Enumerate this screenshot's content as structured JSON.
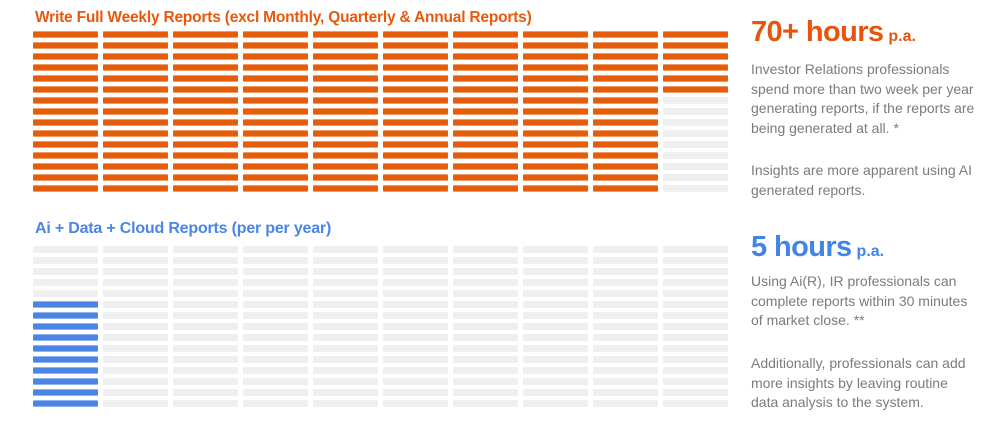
{
  "left": {
    "orange": {
      "title": "Write Full Weekly Reports (excl Monthly, Quarterly &  Annual Reports)",
      "color": "#E8590C"
    },
    "blue": {
      "title": "Ai + Data + Cloud Reports (per per year)",
      "color": "#4A85E8"
    }
  },
  "right": {
    "stat_orange": {
      "value": "70+ hours",
      "suffix": "p.a.",
      "color": "#E8540D",
      "paragraph1": "Investor Relations professionals\nspend more than two  week per year\ngenerating reports, if the reports are\nbeing generated at all. *",
      "paragraph2": "Insights are more apparent using AI\ngenerated reports."
    },
    "stat_blue": {
      "value": "5 hours",
      "suffix": "p.a.",
      "color": "#4285E8",
      "paragraph1": "Using Ai(R), IR professionals can\ncomplete reports within 30 minutes\nof market close. **",
      "paragraph2": "Additionally, professionals can add\nmore insights by leaving routine\ndata analysis to the system."
    }
  },
  "chart_data": [
    {
      "type": "waffle",
      "title": "Write Full Weekly Reports (excl Monthly, Quarterly &  Annual Reports)",
      "value_label": "70+ hours p.a.",
      "rows": 15,
      "columns": 10,
      "total_cells": 150,
      "filled_cells": 141,
      "hours_per_cell": 0.5,
      "fill_from": "top",
      "filled_per_column": [
        15,
        15,
        15,
        15,
        15,
        15,
        15,
        15,
        15,
        6
      ],
      "fill_color": "#E55C0A",
      "empty_color": "#EFEFEF",
      "legend_position": "none",
      "grid": false
    },
    {
      "type": "waffle",
      "title": "Ai + Data + Cloud Reports (per per year)",
      "value_label": "5 hours p.a.",
      "rows": 15,
      "columns": 10,
      "total_cells": 150,
      "filled_cells": 10,
      "hours_per_cell": 0.5,
      "fill_from": "bottom",
      "filled_per_column": [
        10,
        0,
        0,
        0,
        0,
        0,
        0,
        0,
        0,
        0
      ],
      "fill_color": "#4C84E6",
      "empty_color": "#EFEFEF",
      "legend_position": "none",
      "grid": false
    }
  ]
}
